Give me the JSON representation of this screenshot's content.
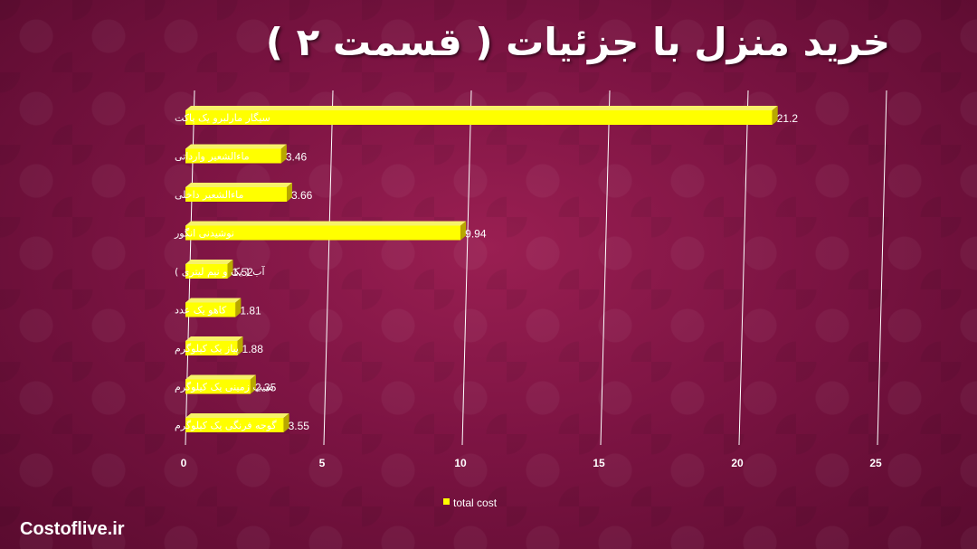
{
  "page": {
    "title": "خرید منزل با جزئیات ( قسمت ۲ )",
    "brand": "Costoflive.ir"
  },
  "colors": {
    "bar_front": "#ffff00",
    "bar_top": "#f7f26a",
    "bar_side": "#b8a800",
    "gridline": "#ffffff",
    "text": "#ffffff"
  },
  "chart_data": {
    "type": "bar",
    "orientation": "horizontal",
    "categories": [
      "سیگار مارلبرو یک پاکت",
      "ماءالشعیر وارداتی",
      "ماءالشعیر داخلی",
      "نوشیدنی انگور",
      "آب ( یک و نیم لیتری )",
      "کاهو  یک عدد",
      "پیاز یک کیلوگرم",
      "سیب زمینی یک کیلوگرم",
      "گوجه فرنگی یک کیلوگرم"
    ],
    "series": [
      {
        "name": "total cost",
        "values": [
          21.2,
          3.46,
          3.66,
          9.94,
          1.52,
          1.81,
          1.88,
          2.35,
          3.55
        ],
        "value_labels": [
          "21.2",
          "3.46",
          "3.66",
          "9.94",
          "1.52",
          "1.81",
          "1.88",
          "2.35",
          "3.55"
        ]
      }
    ],
    "xlim": [
      0,
      25
    ],
    "x_ticks": [
      0,
      5,
      10,
      15,
      20,
      25
    ],
    "x_tick_labels": [
      "0",
      "5",
      "10",
      "15",
      "20",
      "25"
    ],
    "grid": true,
    "legend_position": "bottom"
  }
}
